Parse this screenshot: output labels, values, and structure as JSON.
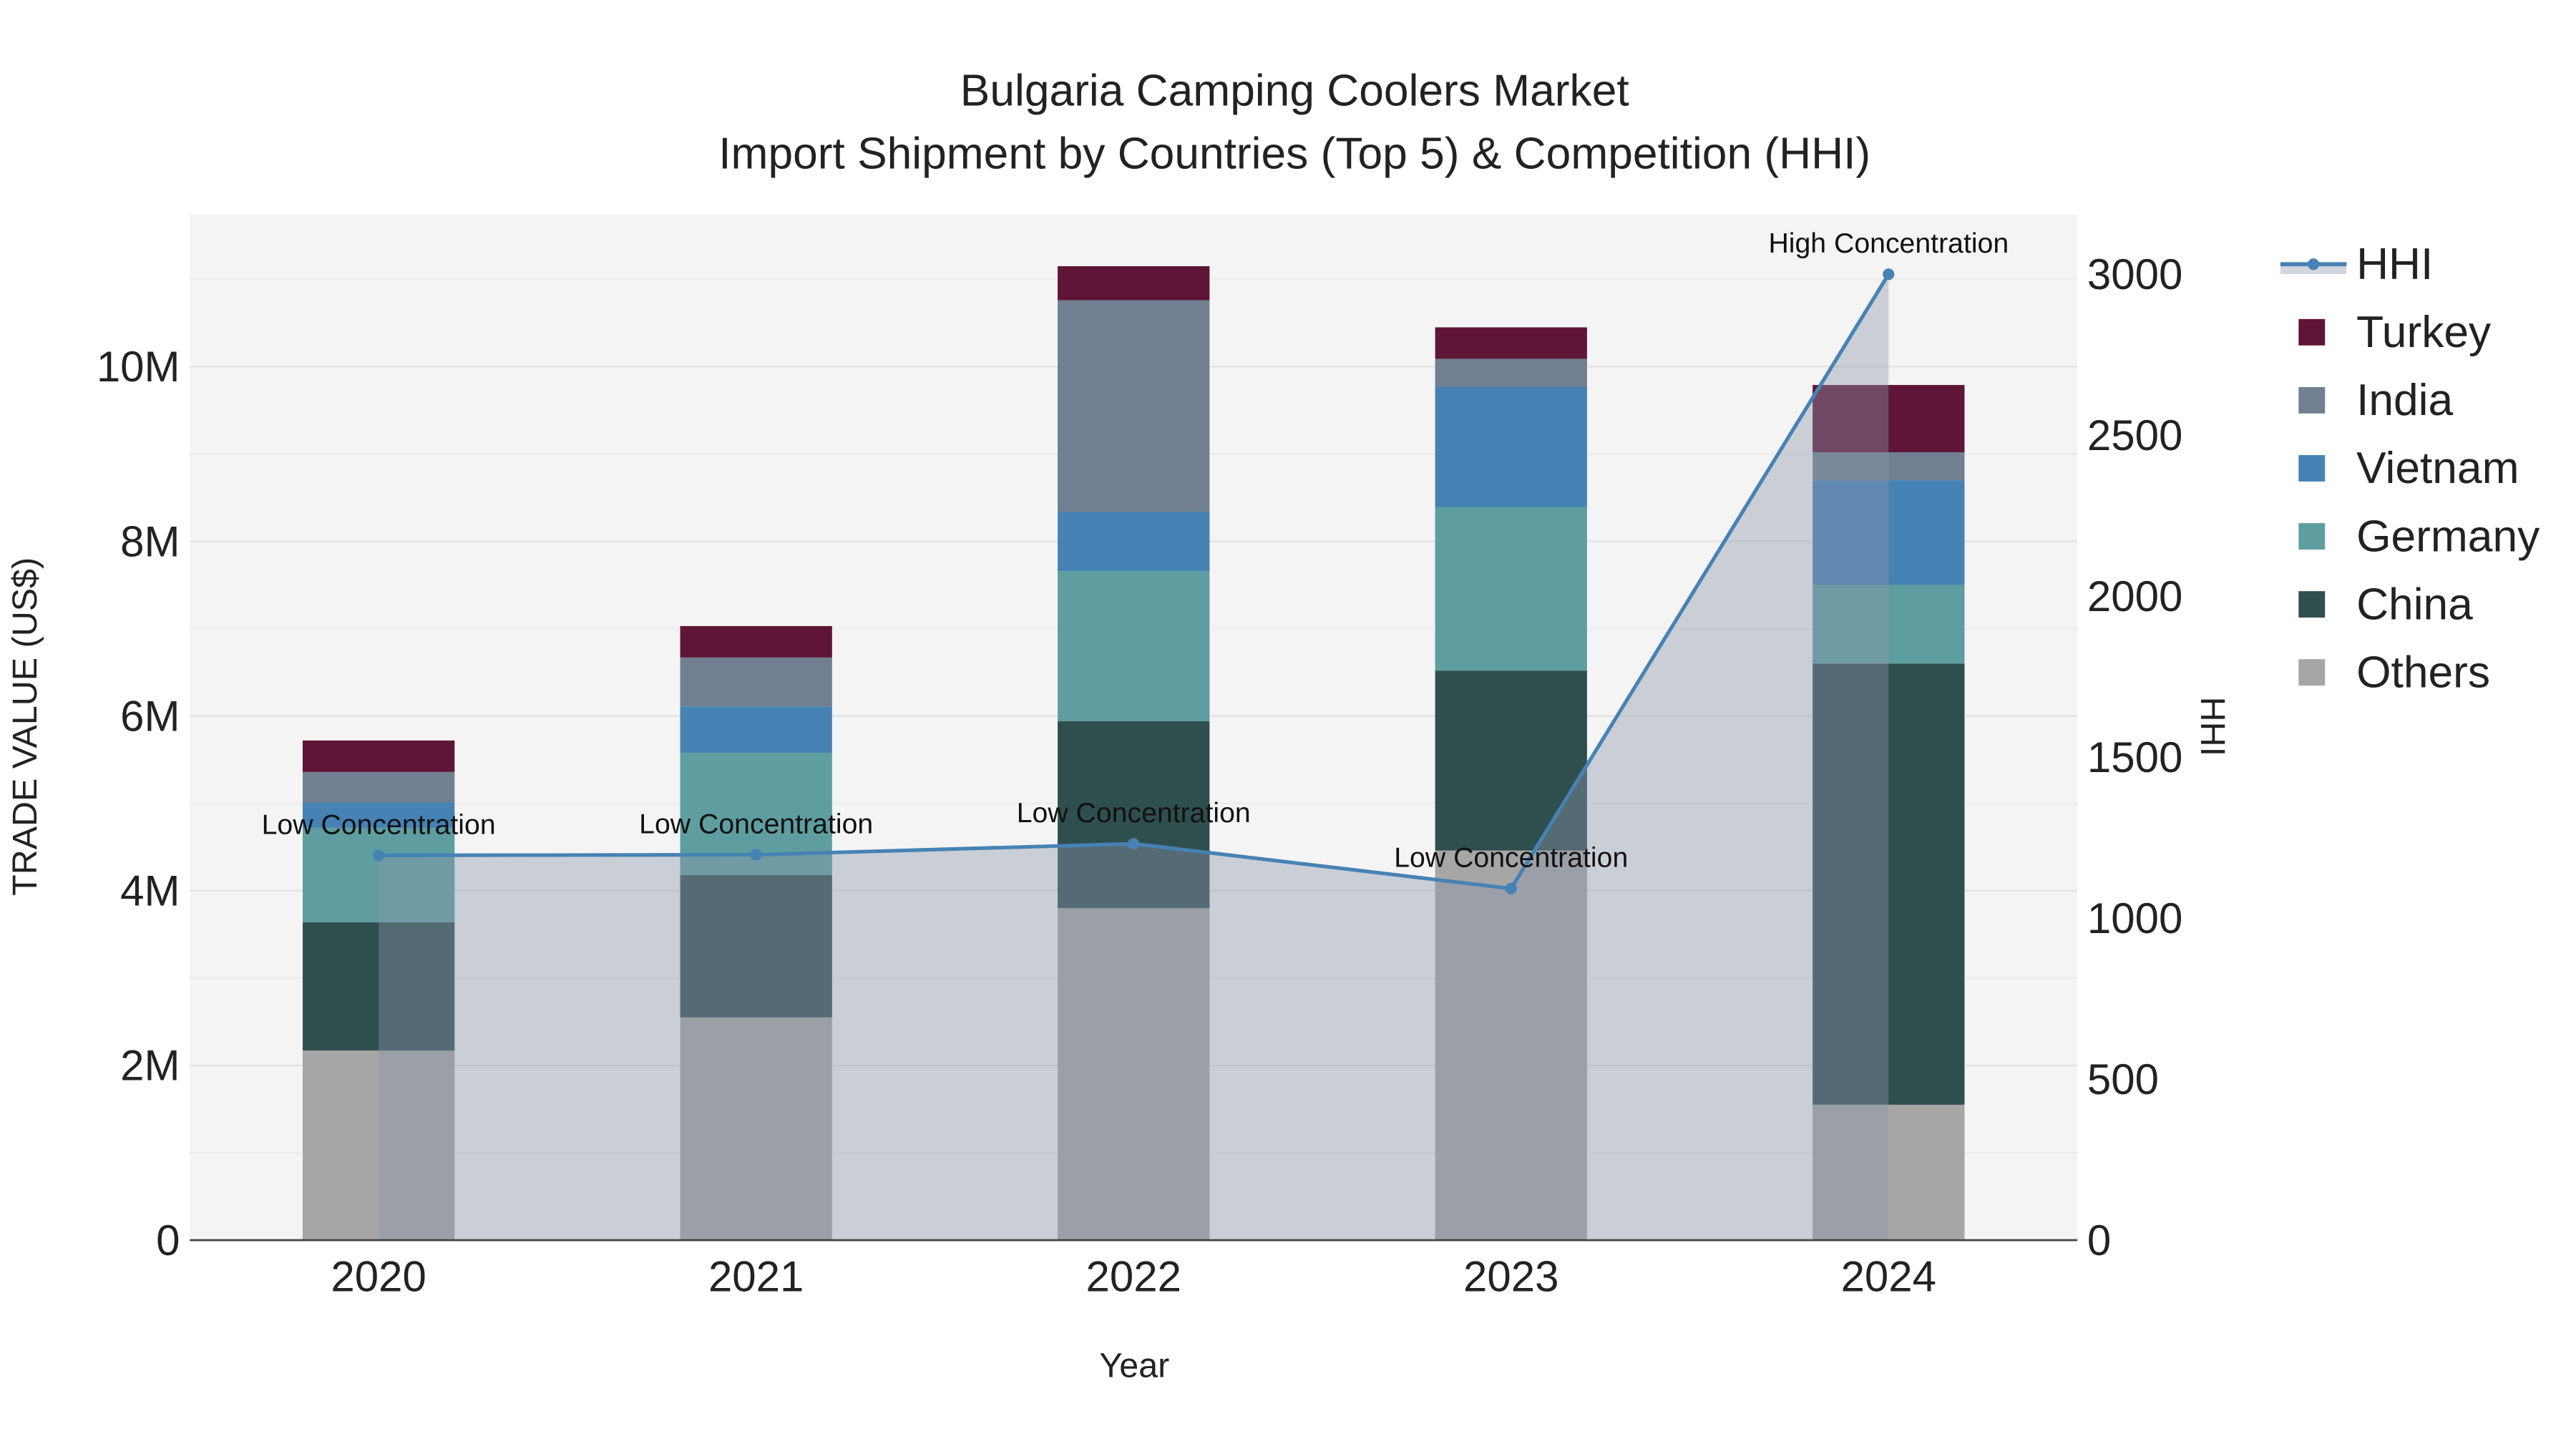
{
  "chart_data": {
    "type": "bar",
    "stacked": true,
    "title": "Bulgaria Camping Coolers Market",
    "subtitle": "Import Shipment by Countries (Top 5) & Competition (HHI)",
    "xlabel": "Year",
    "ylabel": "TRADE VALUE (US$)",
    "y2label": "HHI",
    "categories": [
      "2020",
      "2021",
      "2022",
      "2023",
      "2024"
    ],
    "ylim": [
      0,
      11740000
    ],
    "y2lim": [
      0,
      3185
    ],
    "yticks": [
      {
        "v": 0,
        "label": "0"
      },
      {
        "v": 2000000,
        "label": "2M"
      },
      {
        "v": 4000000,
        "label": "4M"
      },
      {
        "v": 6000000,
        "label": "6M"
      },
      {
        "v": 8000000,
        "label": "8M"
      },
      {
        "v": 10000000,
        "label": "10M"
      }
    ],
    "y2ticks": [
      {
        "v": 0,
        "label": "0"
      },
      {
        "v": 500,
        "label": "500"
      },
      {
        "v": 1000,
        "label": "1000"
      },
      {
        "v": 1500,
        "label": "1500"
      },
      {
        "v": 2000,
        "label": "2000"
      },
      {
        "v": 2500,
        "label": "2500"
      },
      {
        "v": 3000,
        "label": "3000"
      }
    ],
    "grid": true,
    "legend_position": "right",
    "series": [
      {
        "name": "Others",
        "color": "#a6a6a6",
        "values": [
          2170000,
          2550000,
          3800000,
          4460000,
          1550000
        ]
      },
      {
        "name": "China",
        "color": "#2f4f4f",
        "values": [
          1470000,
          1630000,
          2140000,
          2060000,
          5050000
        ]
      },
      {
        "name": "Germany",
        "color": "#5f9ea0",
        "values": [
          1080000,
          1400000,
          1720000,
          1870000,
          900000
        ]
      },
      {
        "name": "Vietnam",
        "color": "#4682b4",
        "values": [
          290000,
          530000,
          680000,
          1380000,
          1200000
        ]
      },
      {
        "name": "India",
        "color": "#708090",
        "values": [
          350000,
          560000,
          2420000,
          320000,
          320000
        ]
      },
      {
        "name": "Turkey",
        "color": "#5f1536",
        "values": [
          360000,
          360000,
          390000,
          360000,
          770000
        ]
      }
    ],
    "hhi": {
      "name": "HHI",
      "color": "#4682b4",
      "values": [
        1195,
        1197,
        1231,
        1092,
        3000
      ],
      "annotations": [
        "Low Concentration",
        "Low Concentration",
        "Low Concentration",
        "Low Concentration",
        "High Concentration"
      ]
    },
    "legend_order": [
      "HHI",
      "Turkey",
      "India",
      "Vietnam",
      "Germany",
      "China",
      "Others"
    ]
  }
}
